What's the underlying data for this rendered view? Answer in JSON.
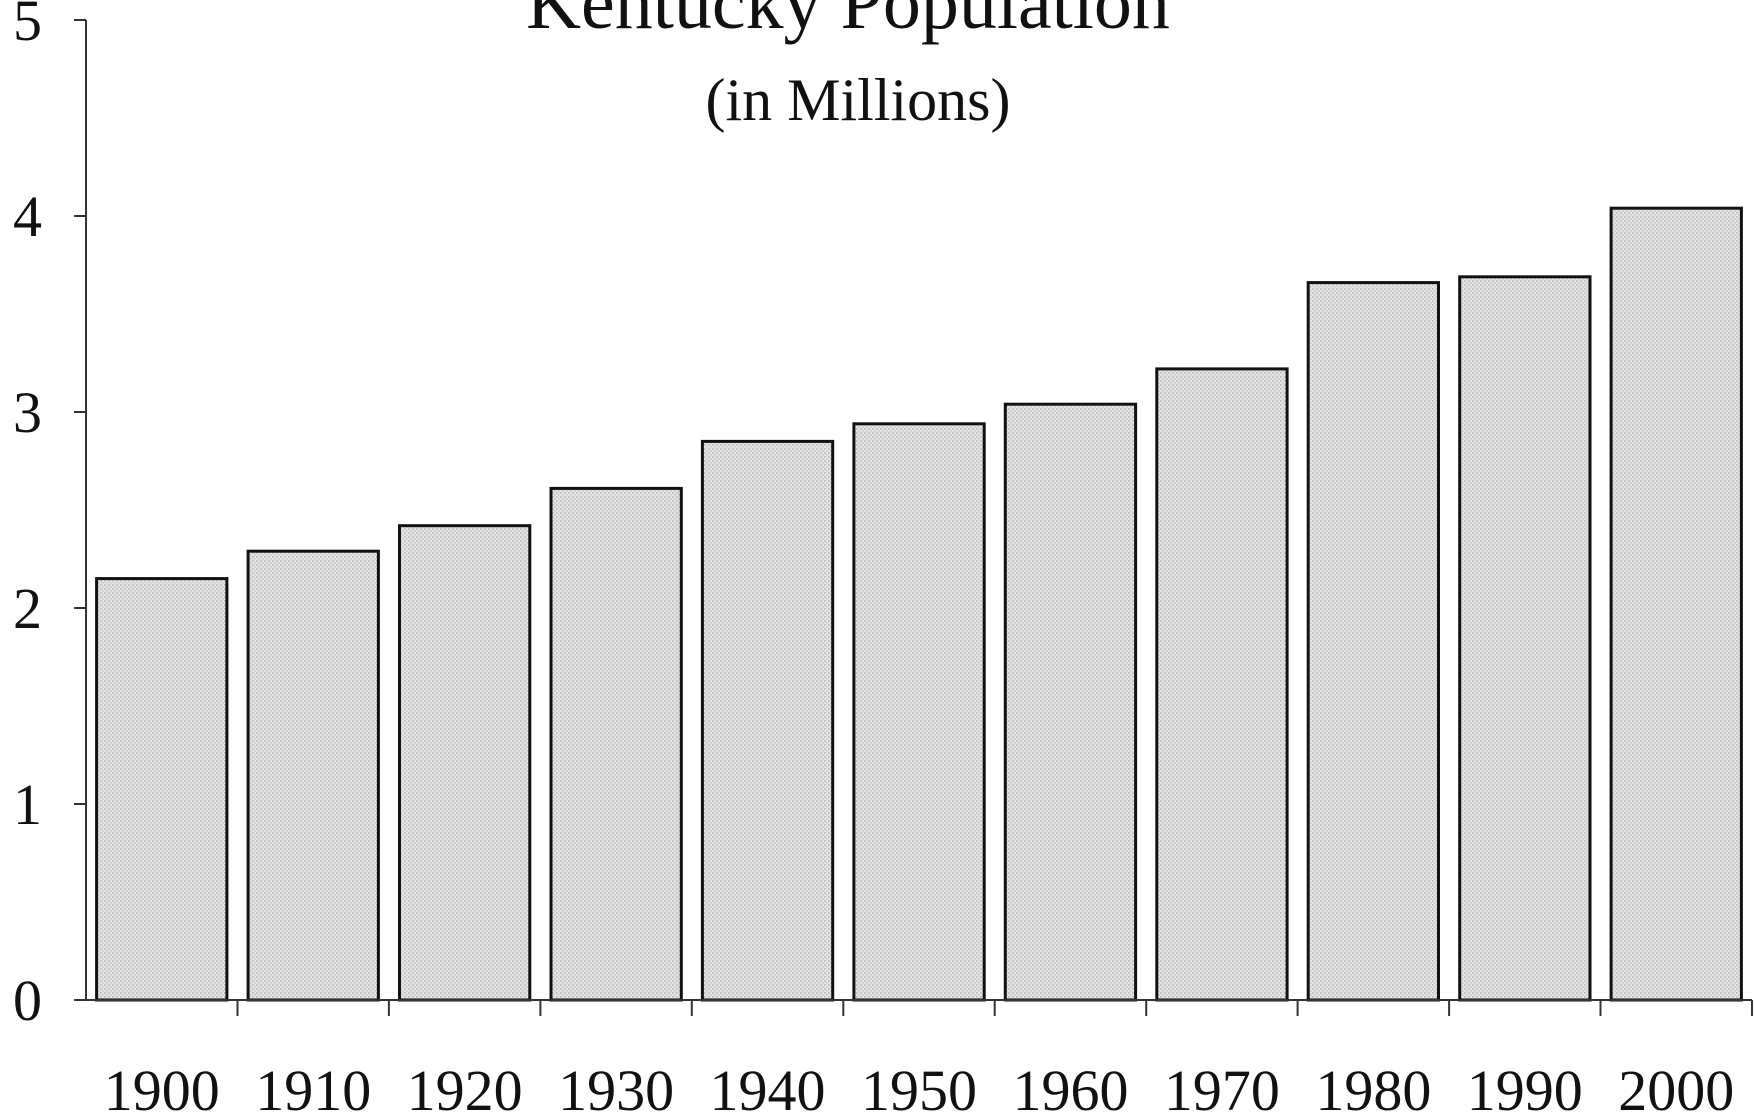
{
  "chart_data": {
    "type": "bar",
    "title": "Kentucky Population",
    "subtitle": "(in Millions)",
    "categories": [
      "1900",
      "1910",
      "1920",
      "1930",
      "1940",
      "1950",
      "1960",
      "1970",
      "1980",
      "1990",
      "2000"
    ],
    "values": [
      2.15,
      2.29,
      2.42,
      2.61,
      2.85,
      2.94,
      3.04,
      3.22,
      3.66,
      3.69,
      4.04
    ],
    "ylim": [
      0,
      5
    ],
    "yticks": [
      "0",
      "1",
      "2",
      "3",
      "4",
      "5"
    ],
    "xlabel": "",
    "ylabel": "",
    "grid": false,
    "legend": "none",
    "colors": {
      "bar_fill": "#e2e2e2",
      "bar_stroke": "#111111",
      "axis": "#333333",
      "text": "#111111"
    }
  }
}
